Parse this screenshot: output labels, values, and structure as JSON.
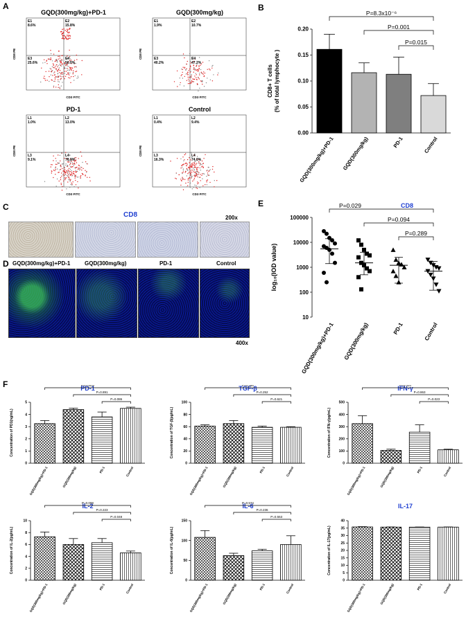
{
  "panels": {
    "A": "A",
    "B": "B",
    "C": "C",
    "D": "D",
    "E": "E",
    "F": "F"
  },
  "flow": [
    {
      "title": "GQD(300mg/kg)+PD-1",
      "q": [
        "E1",
        "E2",
        "E3",
        "E4"
      ],
      "pct": [
        "8.6%",
        "15.8%",
        "25.6%",
        "50.0%"
      ],
      "xlabel": "CD3 FITC",
      "ylabel": "CD8 PE"
    },
    {
      "title": "GQD(300mg/kg)",
      "q": [
        "E1",
        "E2",
        "E3",
        "E4"
      ],
      "pct": [
        "1.9%",
        "10.7%",
        "40.2%",
        "47.2%"
      ],
      "xlabel": "CD3 FITC",
      "ylabel": "CD8 PE"
    },
    {
      "title": "PD-1",
      "q": [
        "L1",
        "L2",
        "L3",
        "L4"
      ],
      "pct": [
        "1.0%",
        "13.0%",
        "9.1%",
        "76.9%"
      ],
      "xlabel": "CD3 FITC",
      "ylabel": "CD8 PE"
    },
    {
      "title": "Control",
      "q": [
        "L1",
        "L2",
        "L3",
        "L4"
      ],
      "pct": [
        "0.4%",
        "9.4%",
        "16.3%",
        "74.0%"
      ],
      "xlabel": "CD3 FITC",
      "ylabel": "CD8 PE"
    }
  ],
  "panelC": {
    "title": "CD8",
    "mag": "200x"
  },
  "panelD": {
    "labels": [
      "GQD(300mg/kg)+PD-1",
      "GQD(300mg/kg)",
      "PD-1",
      "Control"
    ],
    "mag": "400x"
  },
  "chart_data": [
    {
      "id": "B",
      "type": "bar",
      "categories": [
        "GQD(300mg/kg)+PD-1",
        "GQD(300mg/kg)",
        "PD-1",
        "Control"
      ],
      "values": [
        0.161,
        0.116,
        0.113,
        0.072
      ],
      "errors": [
        0.029,
        0.019,
        0.033,
        0.023
      ],
      "colors": [
        "#000000",
        "#b3b3b3",
        "#7f7f7f",
        "#d9d9d9"
      ],
      "ylabel": "CD8+ T cells\n(% of total lymphocyte )",
      "ylim": [
        0,
        0.2
      ],
      "yticks": [
        "0.00",
        "0.05",
        "0.10",
        "0.15",
        "0.20"
      ],
      "annotations": [
        "P=8.3x10⁻⁶",
        "P=0.001",
        "P=0.015"
      ]
    },
    {
      "id": "E",
      "type": "scatter",
      "title": "CD8",
      "categories": [
        "GQD(300mg/kg)+PD-1",
        "GQD(300mg/kg)",
        "PD-1",
        "Control"
      ],
      "ylabel": "log₁₀(IOD value)",
      "yscale": "log",
      "ylim": [
        10,
        100000
      ],
      "yticks": [
        "10",
        "100",
        "1000",
        "10000",
        "100000"
      ],
      "markers": [
        "circle",
        "square",
        "triangle",
        "triangle-down"
      ],
      "groups": [
        {
          "values": [
            28000,
            22000,
            15000,
            12000,
            9000,
            7000,
            6000,
            5000,
            3500,
            1500,
            600,
            250
          ],
          "mean": 5500,
          "sd_low": 1400,
          "sd_high": 14000
        },
        {
          "values": [
            12000,
            8000,
            5000,
            3500,
            3000,
            2500,
            1500,
            1200,
            900,
            700,
            400,
            130
          ],
          "mean": 1500,
          "sd_low": 500,
          "sd_high": 4000
        },
        {
          "values": [
            5000,
            2000,
            1500,
            1300,
            1000,
            700,
            450,
            250
          ],
          "mean": 1200,
          "sd_low": 230,
          "sd_high": 2500
        },
        {
          "values": [
            2000,
            1500,
            1200,
            1000,
            900,
            700,
            500,
            350,
            200,
            110
          ],
          "mean": 700,
          "sd_low": 120,
          "sd_high": 1700
        }
      ],
      "annotations": [
        "P=0.029",
        "P=0.094",
        "P=0.289"
      ]
    },
    {
      "id": "F1",
      "type": "bar",
      "title": "PD-1",
      "ylabel": "Concentration of PD1(ng/mL)",
      "categories": [
        "GQD(300mg/kg)+PD-1",
        "GQD(300mg/kg)",
        "PD-1",
        "Control"
      ],
      "values": [
        3.25,
        4.4,
        3.8,
        4.5
      ],
      "errors": [
        0.25,
        0.12,
        0.4,
        0.1
      ],
      "ylim": [
        0,
        5
      ],
      "yticks": [
        "0",
        "1",
        "2",
        "3",
        "4",
        "5"
      ],
      "annotations": [
        "P=0.0002",
        "P=0.891",
        "P=0.086"
      ]
    },
    {
      "id": "F2",
      "type": "bar",
      "title": "TGF-β",
      "ylabel": "Concentration of TGF-β(pg/mL)",
      "categories": [
        "GQD(300mg/kg)+PD-1",
        "GQD(300mg/kg)",
        "PD-1",
        "Control"
      ],
      "values": [
        61,
        65,
        59,
        59
      ],
      "errors": [
        2,
        5,
        2,
        1
      ],
      "ylim": [
        0,
        100
      ],
      "yticks": [
        "0",
        "20",
        "40",
        "60",
        "80",
        "100"
      ],
      "annotations": [
        "P=0.266",
        "P=0.252",
        "P=0.621"
      ]
    },
    {
      "id": "F3",
      "type": "bar",
      "title": "IFN-γ",
      "ylabel": "Concentration of IFN-γ(pg/mL)",
      "categories": [
        "GQD(300mg/kg)+PD-1",
        "GQD(300mg/kg)",
        "PD-1",
        "Control"
      ],
      "values": [
        325,
        105,
        255,
        110
      ],
      "errors": [
        65,
        10,
        60,
        5
      ],
      "ylim": [
        0,
        500
      ],
      "yticks": [
        "0",
        "100",
        "200",
        "300",
        "400",
        "500"
      ],
      "annotations": [
        "P=0.004",
        "P=0.863",
        "P=0.023"
      ]
    },
    {
      "id": "F4",
      "type": "bar",
      "title": "IL-2",
      "ylabel": "Concentration of IL-2(pg/mL)",
      "categories": [
        "GQD(300mg/kg)+PD-1",
        "GQD(300mg/kg)",
        "PD-1",
        "Control"
      ],
      "values": [
        7.3,
        6.0,
        6.3,
        4.6
      ],
      "errors": [
        0.8,
        1.0,
        0.7,
        0.3
      ],
      "ylim": [
        0,
        10
      ],
      "yticks": [
        "0",
        "2",
        "4",
        "6",
        "8",
        "10"
      ],
      "annotations": [
        "P=0.008",
        "P=0.223",
        "P=0.048"
      ]
    },
    {
      "id": "F5",
      "type": "bar",
      "title": "IL-6",
      "ylabel": "Concentration of IL-6(pg/mL)",
      "categories": [
        "GQD(300mg/kg)+PD-1",
        "GQD(300mg/kg)",
        "PD-1",
        "Control"
      ],
      "values": [
        108,
        62,
        74,
        90
      ],
      "errors": [
        17,
        6,
        4,
        22
      ],
      "ylim": [
        0,
        150
      ],
      "yticks": [
        "0",
        "50",
        "100",
        "150"
      ],
      "annotations": [
        "P=0.574",
        "P=0.236",
        "P=0.553"
      ]
    },
    {
      "id": "F6",
      "type": "bar",
      "title": "IL-17",
      "ylabel": "Concentration of IL-17(pg/mL)",
      "categories": [
        "GQD(300mg/kg)+PD-1",
        "GQD(300mg/kg)",
        "PD-1",
        "Control"
      ],
      "values": [
        35.8,
        35.7,
        35.7,
        35.7
      ],
      "errors": [
        0.2,
        0.1,
        0.1,
        0.1
      ],
      "ylim": [
        0,
        40
      ],
      "yticks": [
        "0",
        "5",
        "10",
        "15",
        "20",
        "25",
        "30",
        "35",
        "40"
      ],
      "annotations": []
    }
  ]
}
